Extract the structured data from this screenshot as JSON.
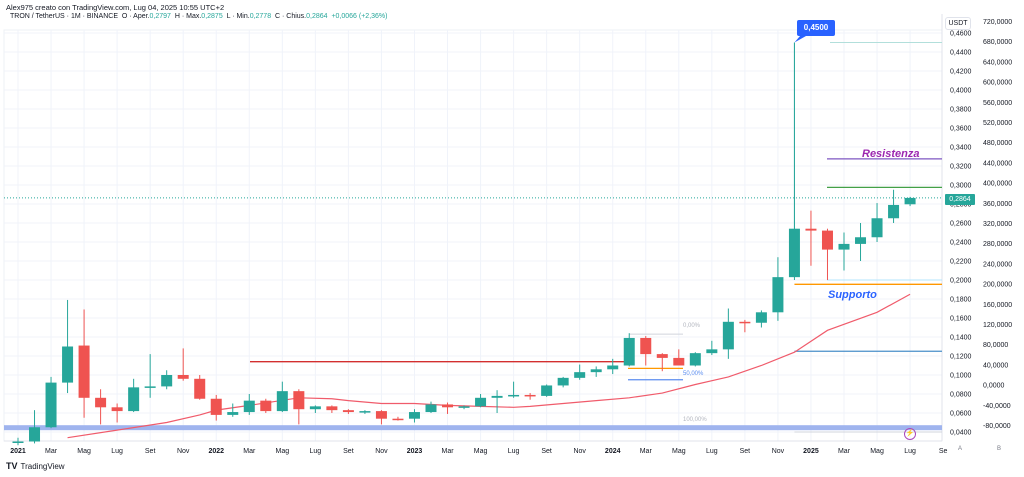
{
  "header": {
    "credit": "Alex975 creato con TradingView.com, Lug 04, 2025 10:55 UTC+2",
    "symbol": "TRON / TetherUS · 1M · BINANCE",
    "open_label": "O · Aper.",
    "open": "0,2797",
    "high_label": "H · Max.",
    "high": "0,2875",
    "low_label": "L · Min.",
    "low": "0,2778",
    "close_label": "C · Chius.",
    "close": "0,2864",
    "change": "+0,0066 (+2,36%)"
  },
  "axis": {
    "currency": "USDT",
    "scale_a": "A",
    "scale_b": "B"
  },
  "brand": {
    "logo": "TV",
    "name": "TradingView"
  },
  "annotations": {
    "resistance": "Resistenza",
    "support": "Supporto",
    "high_label": "0,4500",
    "current_price": "0,2864",
    "fib_0": "0,00%",
    "fib_50": "50,00%",
    "fib_100": "100,00%",
    "alert_icon": "⚡"
  },
  "colors": {
    "up": "#26a69a",
    "down": "#ef5350",
    "ma": "#f05b6b",
    "resistance": "#7e57c2",
    "resistance_text": "#9c27b0",
    "support": "#ff9800",
    "support_text": "#2962ff",
    "band": "#9fb4ee"
  },
  "chart_data": {
    "type": "candlestick",
    "title": "TRON / TetherUS · 1M · BINANCE",
    "interval": "1M",
    "ylim": [
      0.036,
      0.466
    ],
    "price_ticks": [
      "0,4600",
      "0,4400",
      "0,4200",
      "0,4000",
      "0,3800",
      "0,3600",
      "0,3400",
      "0,3200",
      "0,3000",
      "0,2800",
      "0,2600",
      "0,2400",
      "0,2200",
      "0,2000",
      "0,1800",
      "0,1600",
      "0,1400",
      "0,1200",
      "0,1000",
      "0,0800",
      "0,0600",
      "0,0400"
    ],
    "secondary_ticks": [
      "720,0000",
      "680,0000",
      "640,0000",
      "600,0000",
      "560,0000",
      "520,0000",
      "480,0000",
      "440,0000",
      "400,0000",
      "360,0000",
      "320,0000",
      "280,0000",
      "240,0000",
      "200,0000",
      "160,0000",
      "120,0000",
      "80,0000",
      "40,0000",
      "0,0000",
      "-40,0000",
      "-80,0000"
    ],
    "x_ticks": [
      {
        "i": 0,
        "label": "2021"
      },
      {
        "i": 2,
        "label": "Mar"
      },
      {
        "i": 4,
        "label": "Mag"
      },
      {
        "i": 6,
        "label": "Lug"
      },
      {
        "i": 8,
        "label": "Set"
      },
      {
        "i": 10,
        "label": "Nov"
      },
      {
        "i": 12,
        "label": "2022"
      },
      {
        "i": 14,
        "label": "Mar"
      },
      {
        "i": 16,
        "label": "Mag"
      },
      {
        "i": 18,
        "label": "Lug"
      },
      {
        "i": 20,
        "label": "Set"
      },
      {
        "i": 22,
        "label": "Nov"
      },
      {
        "i": 24,
        "label": "2023"
      },
      {
        "i": 26,
        "label": "Mar"
      },
      {
        "i": 28,
        "label": "Mag"
      },
      {
        "i": 30,
        "label": "Lug"
      },
      {
        "i": 32,
        "label": "Set"
      },
      {
        "i": 34,
        "label": "Nov"
      },
      {
        "i": 36,
        "label": "2024"
      },
      {
        "i": 38,
        "label": "Mar"
      },
      {
        "i": 40,
        "label": "Mag"
      },
      {
        "i": 42,
        "label": "Lug"
      },
      {
        "i": 44,
        "label": "Set"
      },
      {
        "i": 46,
        "label": "Nov"
      },
      {
        "i": 48,
        "label": "2025"
      },
      {
        "i": 50,
        "label": "Mar"
      },
      {
        "i": 52,
        "label": "Mag"
      },
      {
        "i": 54,
        "label": "Lug"
      },
      {
        "i": 56,
        "label": "Se"
      }
    ],
    "candles_ohlc": [
      [
        0.029,
        0.034,
        0.026,
        0.03
      ],
      [
        0.03,
        0.063,
        0.028,
        0.045
      ],
      [
        0.045,
        0.098,
        0.044,
        0.092
      ],
      [
        0.092,
        0.179,
        0.081,
        0.13
      ],
      [
        0.131,
        0.169,
        0.055,
        0.076
      ],
      [
        0.076,
        0.085,
        0.048,
        0.066
      ],
      [
        0.066,
        0.07,
        0.05,
        0.062
      ],
      [
        0.062,
        0.096,
        0.061,
        0.087
      ],
      [
        0.087,
        0.122,
        0.076,
        0.088
      ],
      [
        0.088,
        0.105,
        0.085,
        0.1
      ],
      [
        0.1,
        0.128,
        0.094,
        0.096
      ],
      [
        0.096,
        0.1,
        0.074,
        0.075
      ],
      [
        0.075,
        0.079,
        0.052,
        0.058
      ],
      [
        0.058,
        0.07,
        0.056,
        0.061
      ],
      [
        0.061,
        0.08,
        0.058,
        0.073
      ],
      [
        0.073,
        0.075,
        0.06,
        0.062
      ],
      [
        0.062,
        0.093,
        0.061,
        0.083
      ],
      [
        0.083,
        0.085,
        0.048,
        0.064
      ],
      [
        0.064,
        0.068,
        0.06,
        0.067
      ],
      [
        0.067,
        0.068,
        0.06,
        0.063
      ],
      [
        0.063,
        0.064,
        0.059,
        0.061
      ],
      [
        0.061,
        0.063,
        0.059,
        0.062
      ],
      [
        0.062,
        0.063,
        0.048,
        0.054
      ],
      [
        0.054,
        0.056,
        0.052,
        0.053
      ],
      [
        0.054,
        0.064,
        0.05,
        0.061
      ],
      [
        0.061,
        0.072,
        0.06,
        0.069
      ],
      [
        0.069,
        0.071,
        0.059,
        0.066
      ],
      [
        0.066,
        0.068,
        0.064,
        0.067
      ],
      [
        0.067,
        0.08,
        0.066,
        0.076
      ],
      [
        0.076,
        0.084,
        0.06,
        0.078
      ],
      [
        0.078,
        0.093,
        0.076,
        0.079
      ],
      [
        0.079,
        0.081,
        0.074,
        0.078
      ],
      [
        0.078,
        0.09,
        0.077,
        0.089
      ],
      [
        0.089,
        0.098,
        0.087,
        0.097
      ],
      [
        0.097,
        0.111,
        0.095,
        0.103
      ],
      [
        0.103,
        0.109,
        0.098,
        0.106
      ],
      [
        0.106,
        0.117,
        0.101,
        0.11
      ],
      [
        0.11,
        0.144,
        0.109,
        0.139
      ],
      [
        0.139,
        0.141,
        0.11,
        0.122
      ],
      [
        0.122,
        0.123,
        0.104,
        0.118
      ],
      [
        0.118,
        0.127,
        0.11,
        0.11
      ],
      [
        0.11,
        0.124,
        0.109,
        0.123
      ],
      [
        0.123,
        0.136,
        0.121,
        0.127
      ],
      [
        0.127,
        0.17,
        0.117,
        0.156
      ],
      [
        0.156,
        0.158,
        0.145,
        0.155
      ],
      [
        0.155,
        0.168,
        0.15,
        0.166
      ],
      [
        0.166,
        0.224,
        0.157,
        0.203
      ],
      [
        0.203,
        0.45,
        0.2,
        0.254
      ],
      [
        0.254,
        0.273,
        0.215,
        0.252
      ],
      [
        0.252,
        0.254,
        0.2,
        0.232
      ],
      [
        0.232,
        0.25,
        0.21,
        0.238
      ],
      [
        0.238,
        0.26,
        0.22,
        0.245
      ],
      [
        0.245,
        0.281,
        0.24,
        0.265
      ],
      [
        0.265,
        0.295,
        0.26,
        0.279
      ],
      [
        0.2797,
        0.2875,
        0.2778,
        0.2864
      ]
    ],
    "moving_average": [
      [
        3,
        0.034
      ],
      [
        6,
        0.042
      ],
      [
        9,
        0.05
      ],
      [
        11,
        0.058
      ],
      [
        12,
        0.063
      ],
      [
        14,
        0.068
      ],
      [
        17,
        0.076
      ],
      [
        19,
        0.075
      ],
      [
        20,
        0.073
      ],
      [
        22,
        0.07
      ],
      [
        24,
        0.07
      ],
      [
        26,
        0.068
      ],
      [
        28,
        0.067
      ],
      [
        30,
        0.066
      ],
      [
        31,
        0.067
      ],
      [
        33,
        0.07
      ],
      [
        35,
        0.073
      ],
      [
        37,
        0.076
      ],
      [
        39,
        0.081
      ],
      [
        41,
        0.09
      ],
      [
        43,
        0.098
      ],
      [
        45,
        0.11
      ],
      [
        47,
        0.124
      ],
      [
        49,
        0.147
      ],
      [
        52,
        0.166
      ],
      [
        54,
        0.185
      ]
    ],
    "levels": {
      "red_horizontal": 0.114,
      "blue_band": 0.044,
      "high": 0.45,
      "resistance": 0.3275,
      "green_resistance": 0.2975,
      "current": 0.2864,
      "feb_low": 0.2,
      "support": 0.1955,
      "blue_lower": 0.125,
      "fib_0": 0.143,
      "fib_50": 0.105,
      "fib_100": 0.045,
      "fib_orange": 0.107,
      "fib_blue": 0.095
    }
  }
}
